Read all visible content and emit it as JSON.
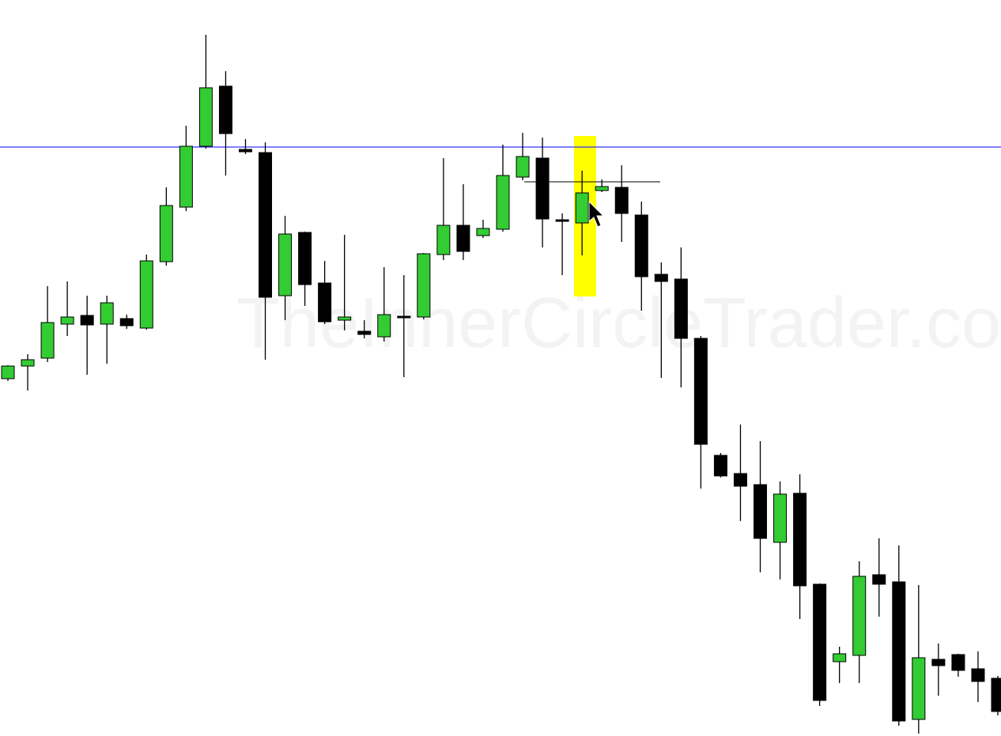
{
  "chart_data": {
    "type": "candlestick",
    "watermark": "TheInnerCircleTrader.co",
    "categories": [
      null,
      null,
      null,
      null,
      null,
      null,
      null,
      null,
      null,
      null,
      null,
      null,
      null,
      null,
      null,
      null,
      null,
      null,
      null,
      null,
      null,
      null,
      null,
      null,
      null,
      null,
      null,
      null,
      null,
      null,
      null,
      null,
      null,
      null,
      null,
      null,
      null,
      null,
      null,
      null,
      null,
      null,
      null,
      null,
      null,
      null,
      null,
      null,
      null,
      null,
      null
    ],
    "open": [
      452,
      468,
      478,
      521,
      532,
      521,
      528,
      516,
      600,
      669,
      746,
      822,
      742,
      738,
      557,
      637,
      573,
      526,
      512,
      505,
      531,
      530,
      609,
      646,
      633,
      641,
      707,
      731,
      653,
      649,
      690,
      694,
      659,
      584,
      578,
      503,
      355,
      332,
      318,
      245,
      307,
      192,
      94,
      102,
      204,
      195,
      21,
      97,
      103,
      85,
      73
    ],
    "high": [
      469,
      483,
      569,
      575,
      557,
      557,
      533,
      609,
      694,
      772,
      887,
      841,
      755,
      751,
      658,
      638,
      601,
      634,
      526,
      593,
      583,
      611,
      731,
      698,
      653,
      748,
      763,
      757,
      661,
      715,
      704,
      722,
      676,
      599,
      618,
      506,
      358,
      394,
      373,
      322,
      331,
      193,
      113,
      221,
      250,
      241,
      191,
      117,
      104,
      107,
      76
    ],
    "low": [
      449,
      437,
      473,
      506,
      457,
      471,
      515,
      514,
      595,
      664,
      743,
      709,
      736,
      476,
      526,
      544,
      521,
      513,
      503,
      499,
      454,
      527,
      602,
      602,
      630,
      638,
      703,
      618,
      583,
      608,
      688,
      625,
      538,
      453,
      441,
      313,
      327,
      272,
      207,
      198,
      148,
      38,
      67,
      67,
      151,
      13,
      3,
      51,
      75,
      43,
      26
    ],
    "close": [
      468,
      476,
      523,
      530,
      520,
      548,
      519,
      601,
      671,
      746,
      820,
      762,
      739,
      555,
      635,
      571,
      524,
      530,
      508,
      533,
      529,
      610,
      646,
      613,
      642,
      709,
      733,
      654,
      651,
      687,
      695,
      661,
      581,
      575,
      503,
      369,
      329,
      316,
      250,
      306,
      190,
      45,
      104,
      202,
      192,
      19,
      99,
      89,
      83,
      69,
      31
    ],
    "up_color": "#33cc33",
    "down_color": "#000000",
    "ylim": [
      0,
      931
    ],
    "levels": [
      {
        "value": 745,
        "color": "#3333ff"
      }
    ],
    "segments": [
      {
        "value": 701,
        "color": "#000000"
      }
    ]
  }
}
